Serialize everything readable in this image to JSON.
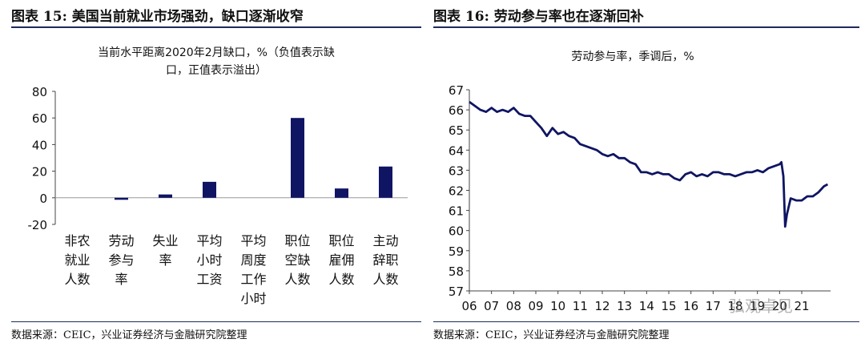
{
  "left": {
    "figure_title": "图表 15: 美国当前就业市场强劲，缺口逐渐收窄",
    "source": "数据来源：CEIC，兴业证券经济与金融研究院整理"
  },
  "right": {
    "figure_title": "图表 16: 劳动参与率也在逐渐回补",
    "source": "数据来源：CEIC，兴业证券经济与金融研究院整理"
  },
  "watermark": "弘观卓见",
  "colors": {
    "navy": "#0f1563",
    "rule": "#1f2a5a"
  },
  "chart_data": [
    {
      "type": "bar",
      "title_lines": [
        "当前水平距离2020年2月缺口，%（负值表示缺",
        "口，正值表示溢出）"
      ],
      "categories": [
        "非农就业人数",
        "劳动参与率",
        "失业率",
        "平均小时工资",
        "平均周度工作小时",
        "职位空缺人数",
        "职位雇佣人数",
        "主动辞职人数"
      ],
      "category_lines": [
        [
          "非农",
          "就业",
          "人数"
        ],
        [
          "劳动",
          "参与",
          "率"
        ],
        [
          "失业",
          "率"
        ],
        [
          "平均",
          "小时",
          "工资"
        ],
        [
          "平均",
          "周度",
          "工作",
          "小时"
        ],
        [
          "职位",
          "空缺",
          "人数"
        ],
        [
          "职位",
          "雇佣",
          "人数"
        ],
        [
          "主动",
          "辞职",
          "人数"
        ]
      ],
      "values": [
        0,
        -1.5,
        2.5,
        12,
        0,
        60,
        7,
        23.5
      ],
      "ylim": [
        -20,
        80
      ],
      "yticks": [
        "80",
        "60",
        "40",
        "20",
        "0",
        "-20"
      ],
      "ytick_values": [
        80,
        60,
        40,
        20,
        0,
        -20
      ],
      "grid": false
    },
    {
      "type": "line",
      "title": "劳动参与率，季调后，%",
      "ylim": [
        57,
        67
      ],
      "yticks": [
        "67",
        "66",
        "65",
        "64",
        "63",
        "62",
        "61",
        "60",
        "59",
        "58",
        "57"
      ],
      "ytick_values": [
        67,
        66,
        65,
        64,
        63,
        62,
        61,
        60,
        59,
        58,
        57
      ],
      "xticks": [
        "06",
        "07",
        "08",
        "09",
        "10",
        "11",
        "12",
        "13",
        "14",
        "15",
        "16",
        "17",
        "18",
        "19",
        "20",
        "21"
      ],
      "xtick_years": [
        2006,
        2007,
        2008,
        2009,
        2010,
        2011,
        2012,
        2013,
        2014,
        2015,
        2016,
        2017,
        2018,
        2019,
        2020,
        2021
      ],
      "xlim": [
        2006,
        2022.3
      ],
      "grid": false,
      "series": [
        {
          "x": [
            2006.0,
            2006.25,
            2006.5,
            2006.75,
            2007.0,
            2007.25,
            2007.5,
            2007.75,
            2008.0,
            2008.25,
            2008.5,
            2008.75,
            2009.0,
            2009.25,
            2009.5,
            2009.75,
            2010.0,
            2010.25,
            2010.5,
            2010.75,
            2011.0,
            2011.25,
            2011.5,
            2011.75,
            2012.0,
            2012.25,
            2012.5,
            2012.75,
            2013.0,
            2013.25,
            2013.5,
            2013.75,
            2014.0,
            2014.25,
            2014.5,
            2014.75,
            2015.0,
            2015.25,
            2015.5,
            2015.75,
            2016.0,
            2016.25,
            2016.5,
            2016.75,
            2017.0,
            2017.25,
            2017.5,
            2017.75,
            2018.0,
            2018.25,
            2018.5,
            2018.75,
            2019.0,
            2019.25,
            2019.5,
            2019.75,
            2020.0,
            2020.08,
            2020.17,
            2020.25,
            2020.33,
            2020.5,
            2020.75,
            2021.0,
            2021.25,
            2021.5,
            2021.75,
            2022.0,
            2022.17
          ],
          "y": [
            66.4,
            66.2,
            66.0,
            65.9,
            66.1,
            65.9,
            66.0,
            65.9,
            66.1,
            65.8,
            65.7,
            65.7,
            65.4,
            65.1,
            64.7,
            65.1,
            64.8,
            64.9,
            64.7,
            64.6,
            64.3,
            64.2,
            64.1,
            64.0,
            63.8,
            63.7,
            63.8,
            63.6,
            63.6,
            63.4,
            63.3,
            62.9,
            62.9,
            62.8,
            62.9,
            62.8,
            62.8,
            62.6,
            62.5,
            62.8,
            62.9,
            62.7,
            62.8,
            62.7,
            62.9,
            62.9,
            62.8,
            62.8,
            62.7,
            62.8,
            62.9,
            62.9,
            63.0,
            62.9,
            63.1,
            63.2,
            63.3,
            63.4,
            62.7,
            60.2,
            60.8,
            61.6,
            61.5,
            61.5,
            61.7,
            61.7,
            61.9,
            62.2,
            62.3
          ]
        }
      ]
    }
  ]
}
